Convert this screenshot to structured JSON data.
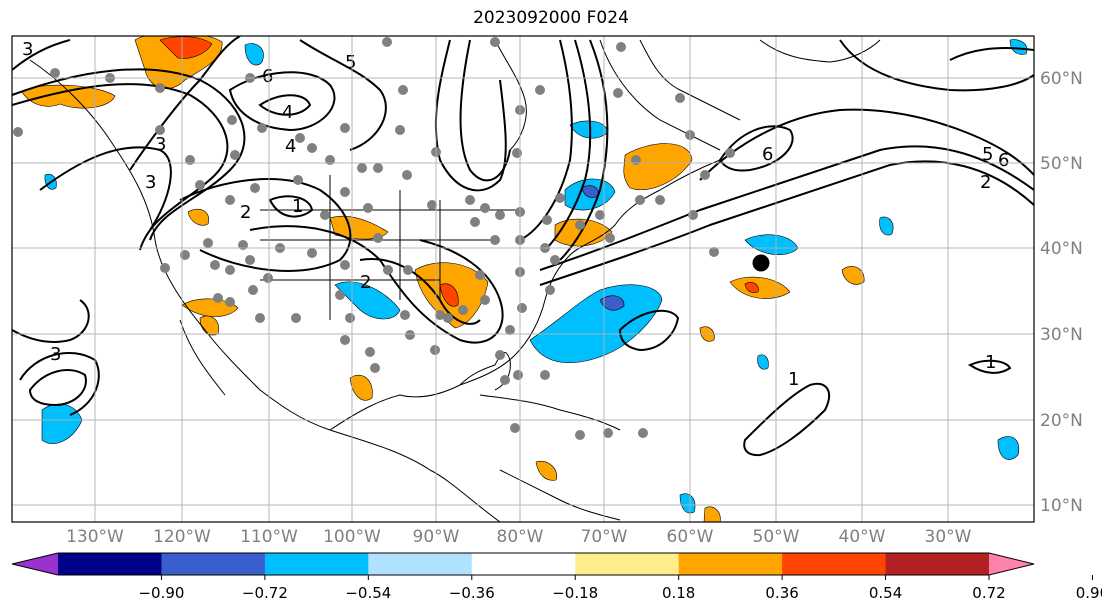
{
  "title": "2023092000 F024",
  "map": {
    "lon_labels": [
      "130°W",
      "120°W",
      "110°W",
      "100°W",
      "90°W",
      "80°W",
      "70°W",
      "60°W",
      "50°W",
      "40°W",
      "30°W"
    ],
    "lat_labels": [
      "60°N",
      "50°N",
      "40°N",
      "30°N",
      "20°N",
      "10°N"
    ],
    "contour_labels": [
      "5",
      "6",
      "4",
      "4",
      "3",
      "3",
      "2",
      "1",
      "2",
      "6",
      "5",
      "6",
      "2",
      "3",
      "1",
      "1",
      "3"
    ]
  },
  "colorbar": {
    "tick_labels": [
      "−0.90",
      "−0.72",
      "−0.54",
      "−0.36",
      "−0.18",
      "0.18",
      "0.36",
      "0.54",
      "0.72",
      "0.90"
    ],
    "colors": [
      "#9a32cd",
      "#00008b",
      "#3a5fcd",
      "#00bfff",
      "#b0e2ff",
      "#ffffff",
      "#ffec8b",
      "#ffa500",
      "#ff4500",
      "#b22222",
      "#ff82ab"
    ]
  }
}
